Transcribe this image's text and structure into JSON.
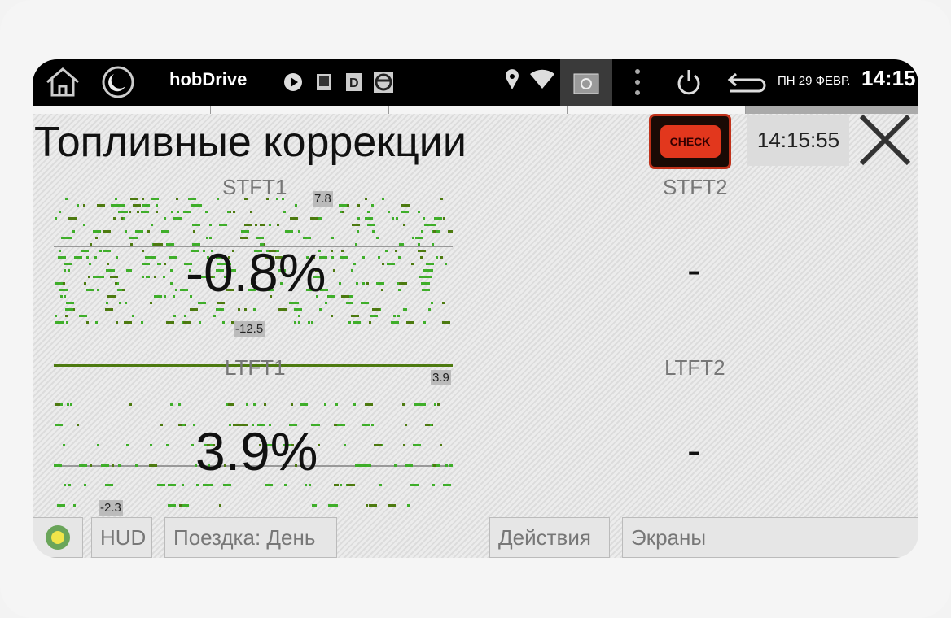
{
  "status_bar": {
    "app_name": "hobDrive",
    "date": "ПН 29 ФЕВР.",
    "clock": "14:15"
  },
  "header": {
    "title": "Топливные коррекции",
    "check_label": "CHECK",
    "time": "14:15:55"
  },
  "gauges": [
    {
      "label": "STFT1",
      "value": "-0.8%",
      "max_tag": "7.8",
      "min_tag": "-12.5"
    },
    {
      "label": "STFT2",
      "value": "-"
    },
    {
      "label": "LTFT1",
      "value": "3.9%",
      "max_tag": "3.9",
      "min_tag": "-2.3"
    },
    {
      "label": "LTFT2",
      "value": "-"
    }
  ],
  "bottom_bar": {
    "hud": "HUD",
    "trip": "Поездка: День",
    "actions": "Действия",
    "screens": "Экраны"
  },
  "colors": {
    "plot_points": "#3fae2a",
    "plot_points_dark": "#4d7a10",
    "check_engine": "#e2371d",
    "status_bar": "#000000"
  }
}
